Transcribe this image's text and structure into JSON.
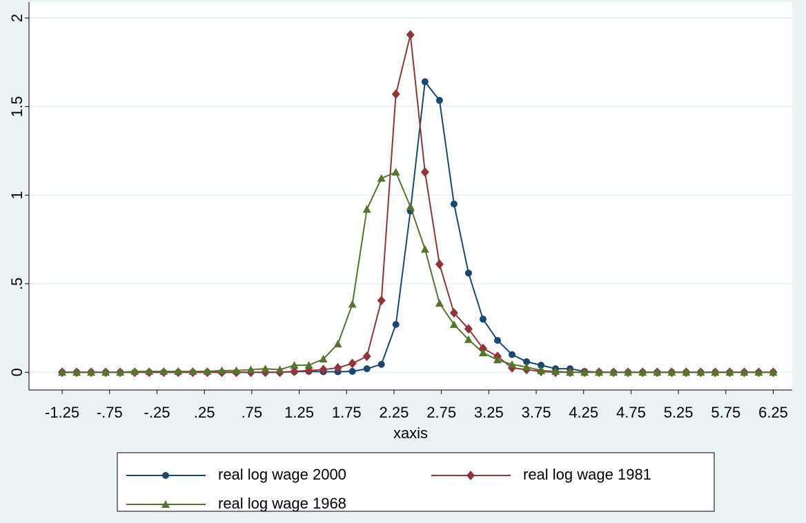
{
  "chart_data": {
    "type": "line",
    "x_label": "xaxis",
    "x": [
      -1.25,
      -1.097,
      -0.944,
      -0.791,
      -0.638,
      -0.485,
      -0.332,
      -0.179,
      -0.026,
      0.128,
      0.281,
      0.434,
      0.587,
      0.74,
      0.893,
      1.046,
      1.199,
      1.352,
      1.505,
      1.658,
      1.811,
      1.964,
      2.117,
      2.27,
      2.423,
      2.577,
      2.73,
      2.883,
      3.036,
      3.189,
      3.342,
      3.495,
      3.648,
      3.801,
      3.954,
      4.107,
      4.26,
      4.413,
      4.566,
      4.719,
      4.872,
      5.026,
      5.179,
      5.332,
      5.485,
      5.638,
      5.791,
      5.944,
      6.097,
      6.25
    ],
    "series": [
      {
        "name": "real log wage 2000",
        "color": "#1a476f",
        "marker": "circle",
        "values": [
          0,
          0,
          0,
          0,
          0,
          0,
          0,
          0,
          0,
          0,
          0,
          0,
          0,
          0,
          0,
          0,
          0.003,
          0.005,
          0.003,
          0.003,
          0.005,
          0.02,
          0.045,
          0.27,
          0.91,
          1.64,
          1.535,
          0.95,
          0.56,
          0.3,
          0.18,
          0.1,
          0.06,
          0.04,
          0.02,
          0.02,
          0.005,
          0,
          0,
          0,
          0,
          0,
          0,
          0,
          0,
          0,
          0,
          0,
          0,
          0
        ]
      },
      {
        "name": "real log wage 1981",
        "color": "#90353b",
        "marker": "diamond",
        "values": [
          0,
          0,
          0,
          0,
          0,
          0,
          0,
          0,
          0,
          0,
          0,
          0,
          0,
          0,
          0,
          0,
          0.005,
          0.01,
          0.015,
          0.025,
          0.05,
          0.09,
          0.405,
          1.57,
          1.905,
          1.13,
          0.61,
          0.335,
          0.245,
          0.135,
          0.09,
          0.025,
          0.015,
          0.005,
          0,
          0,
          0,
          0,
          0,
          0,
          0,
          0,
          0,
          0,
          0,
          0,
          0,
          0,
          0,
          0
        ]
      },
      {
        "name": "real log wage 1968",
        "color": "#55752f",
        "marker": "triangle",
        "values": [
          0,
          0,
          0,
          0,
          0,
          0.005,
          0.005,
          0.005,
          0.005,
          0.005,
          0.005,
          0.01,
          0.01,
          0.015,
          0.02,
          0.015,
          0.04,
          0.04,
          0.075,
          0.16,
          0.385,
          0.92,
          1.095,
          1.13,
          0.935,
          0.695,
          0.39,
          0.27,
          0.185,
          0.11,
          0.07,
          0.045,
          0.03,
          0.01,
          0.005,
          0,
          0,
          0,
          0,
          0,
          0,
          0,
          0,
          0,
          0,
          0,
          0,
          0,
          0,
          0
        ]
      }
    ],
    "xlim": [
      -1.6,
      6.45
    ],
    "ylim": [
      -0.1,
      2.09
    ],
    "xticks": [
      -1.25,
      {
        "value": -0.75,
        "label": "-.75"
      },
      {
        "value": -0.25,
        "label": "-.25"
      },
      {
        "value": 0.25,
        "label": ".25"
      },
      {
        "value": 0.75,
        "label": ".75"
      },
      1.25,
      1.75,
      2.25,
      2.75,
      3.25,
      3.75,
      4.25,
      4.75,
      5.25,
      5.75,
      6.25
    ],
    "yticks": [
      0,
      {
        "value": 0.5,
        "label": ".5"
      },
      1,
      1.5,
      2
    ],
    "grid": true,
    "legend": "bottom"
  }
}
